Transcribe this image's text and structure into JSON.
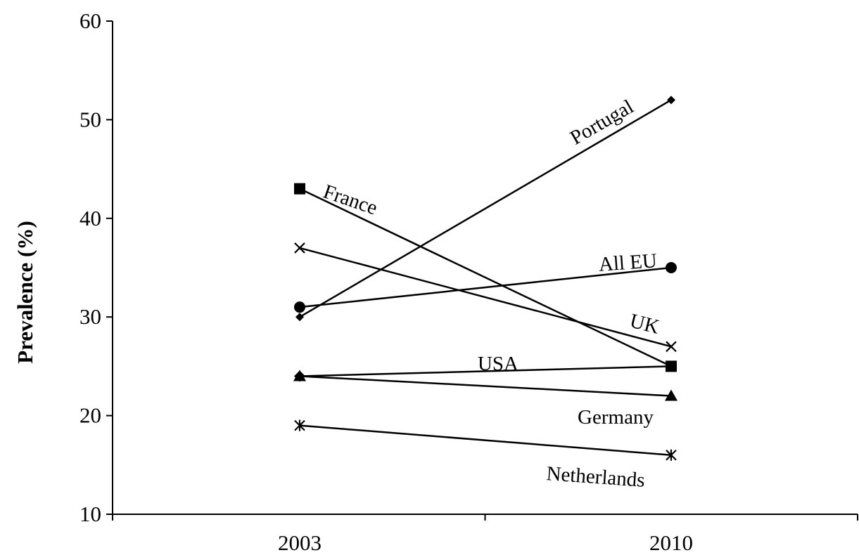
{
  "chart_data": {
    "type": "line",
    "title": "",
    "xlabel": "",
    "ylabel": "Prevalence (%)",
    "categories": [
      "2003",
      "2010"
    ],
    "ylim": [
      10,
      60
    ],
    "yticks": [
      10,
      20,
      30,
      40,
      50,
      60
    ],
    "legend": "none (series labeled inline)",
    "grid": false,
    "series": [
      {
        "name": "Portugal",
        "values": [
          30,
          52
        ],
        "marker": "diamond"
      },
      {
        "name": "France",
        "values": [
          43,
          25
        ],
        "marker": "square"
      },
      {
        "name": "All EU",
        "values": [
          31,
          35
        ],
        "marker": "circle"
      },
      {
        "name": "UK",
        "values": [
          37,
          27
        ],
        "marker": "x"
      },
      {
        "name": "USA",
        "values": [
          24,
          25
        ],
        "marker": "diamond-large"
      },
      {
        "name": "Germany",
        "values": [
          24,
          22
        ],
        "marker": "triangle"
      },
      {
        "name": "Netherlands",
        "values": [
          19,
          16
        ],
        "marker": "asterisk"
      }
    ]
  }
}
